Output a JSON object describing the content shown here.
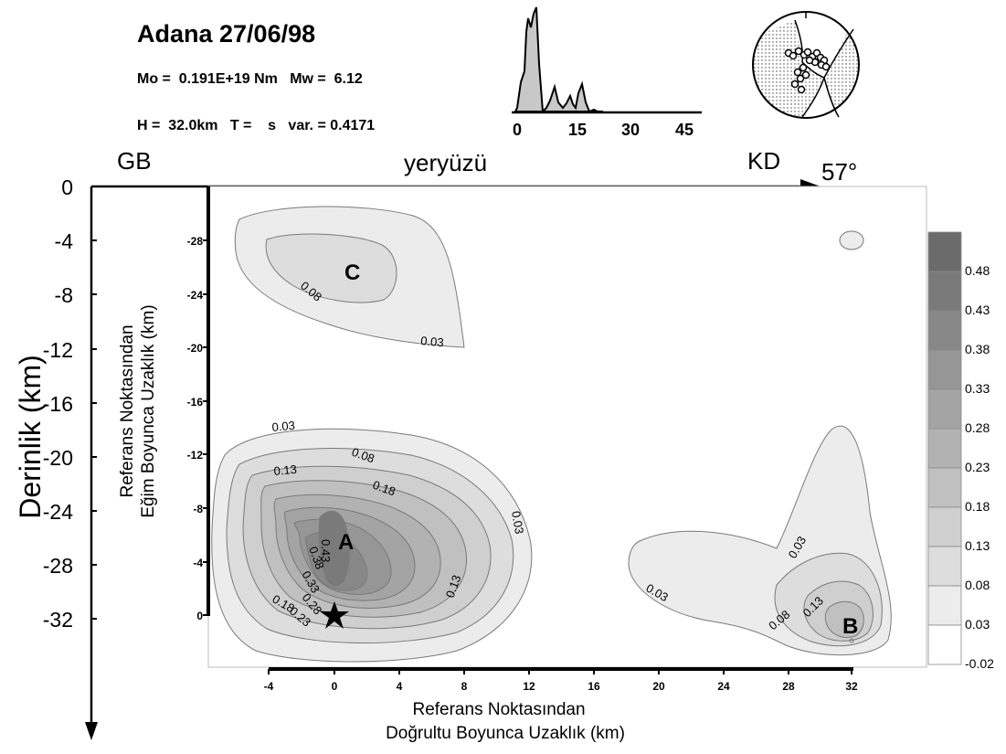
{
  "header": {
    "title": "Adana 27/06/98",
    "moment_line": "Mo =  0.191E+19 Nm   Mw =  6.12",
    "depth_line": "H =  32.0km   T =    s   var. = 0.4171"
  },
  "stf": {
    "x_ticks": [
      "0",
      "15",
      "30",
      "45"
    ]
  },
  "direction": {
    "left": "GB",
    "right": "KD",
    "surface": "yeryüzü",
    "strike": "57°"
  },
  "depth_axis": {
    "label": "Derinlik (km)",
    "ticks": [
      "0",
      "-4",
      "-8",
      "-12",
      "-16",
      "-20",
      "-24",
      "-28",
      "-32"
    ]
  },
  "dip_axis": {
    "label_line1": "Referans Noktasından",
    "label_line2": "Eğim Boyunca Uzaklık (km)",
    "ticks": [
      "-28",
      "-24",
      "-20",
      "-16",
      "-12",
      "-8",
      "-4",
      "0"
    ]
  },
  "strike_axis": {
    "label_line1": "Referans Noktasından",
    "label_line2": "Doğrultu Boyunca Uzaklık (km)",
    "ticks": [
      "-4",
      "0",
      "4",
      "8",
      "12",
      "16",
      "20",
      "24",
      "28",
      "32"
    ]
  },
  "patches": {
    "a": "A",
    "b": "B",
    "c": "C"
  },
  "contour_labels": {
    "c_inner": "0.08",
    "c_outer": "0.03",
    "a_003": "0.03",
    "a_013_top": "0.13",
    "a_008": "0.08",
    "a_018": "0.18",
    "a_003_right": "0.03",
    "a_013_right": "0.13",
    "a_043": "0.43",
    "a_038": "0.38",
    "a_033": "0.33",
    "a_028": "0.28",
    "a_023": "0.23",
    "a_018_bottom": "0.18",
    "b_003_left": "0.03",
    "b_003_top": "0.03",
    "b_008": "0.08",
    "b_013": "0.13"
  },
  "colorbar": {
    "labels": [
      "0.48",
      "0.43",
      "0.38",
      "0.33",
      "0.28",
      "0.23",
      "0.18",
      "0.13",
      "0.08",
      "0.03",
      "-0.02"
    ],
    "colors": [
      "#6b6b6b",
      "#7a7a7a",
      "#888888",
      "#969696",
      "#a4a4a4",
      "#b2b2b2",
      "#c0c0c0",
      "#cfcfcf",
      "#dddddd",
      "#ececec",
      "#ffffff"
    ]
  }
}
